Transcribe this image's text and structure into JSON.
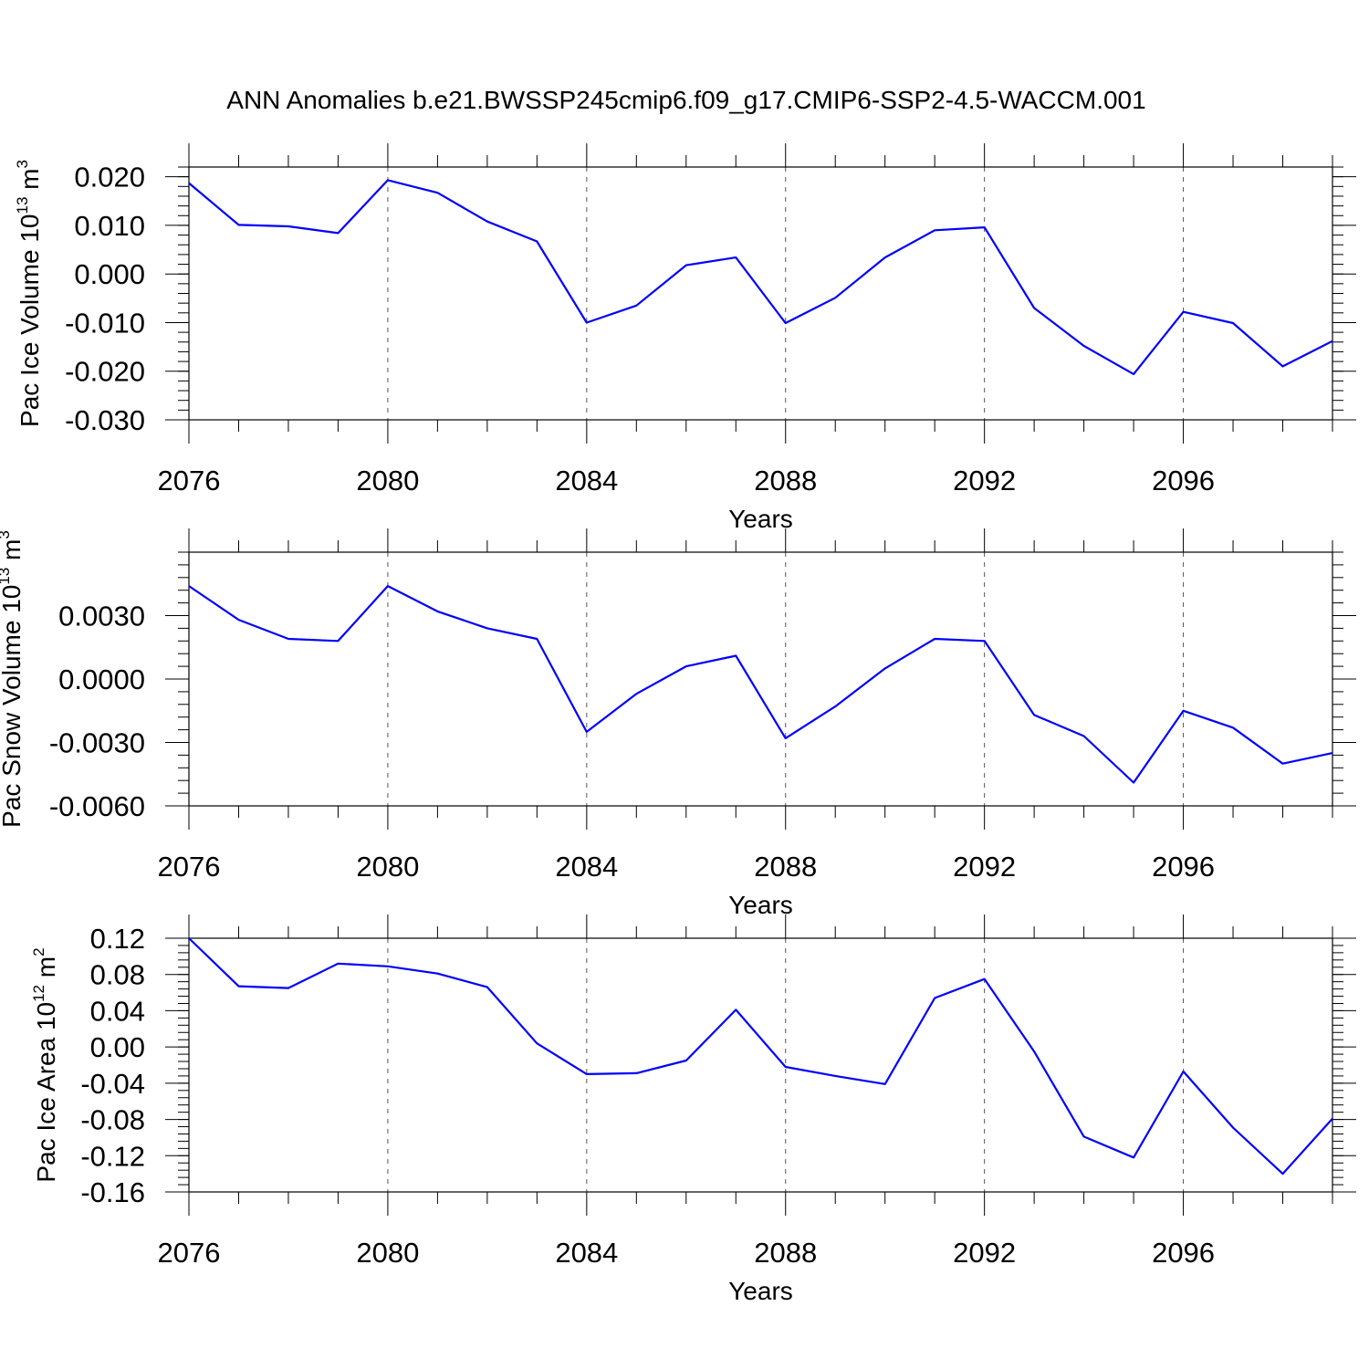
{
  "title": "ANN Anomalies b.e21.BWSSP245cmip6.f09_g17.CMIP6-SSP2-4.5-WACCM.001",
  "colors": {
    "line": "#0000ff",
    "axis": "#000000",
    "grid": "#555555"
  },
  "chart_data": [
    {
      "type": "line",
      "ylabel": {
        "main": "Pac Ice Volume 10",
        "exponent": "13",
        "unit": " m",
        "unit_exponent": "3"
      },
      "xlabel": "Years",
      "xlim": [
        2076,
        2099
      ],
      "ylim": [
        -0.03,
        0.022
      ],
      "yticks": [
        0.02,
        0.01,
        0.0,
        -0.01,
        -0.02,
        -0.03
      ],
      "ytick_labels": [
        "0.020",
        "0.010",
        "0.000",
        "-0.010",
        "-0.020",
        "-0.030"
      ],
      "yminor_step": 0.002,
      "xticks": [
        2076,
        2080,
        2084,
        2088,
        2092,
        2096
      ],
      "xtick_labels": [
        "2076",
        "2080",
        "2084",
        "2088",
        "2092",
        "2096"
      ],
      "grid_x": "dashed at major ticks",
      "series": [
        {
          "x": [
            2076,
            2077,
            2078,
            2079,
            2080,
            2081,
            2082,
            2083,
            2084,
            2085,
            2086,
            2087,
            2088,
            2089,
            2090,
            2091,
            2092,
            2093,
            2094,
            2095,
            2096,
            2097,
            2098,
            2099
          ],
          "values": [
            0.0187,
            0.0101,
            0.0098,
            0.0084,
            0.0193,
            0.0167,
            0.0108,
            0.0067,
            -0.01,
            -0.0065,
            0.0018,
            0.0034,
            -0.0101,
            -0.0049,
            0.0034,
            0.009,
            0.0096,
            -0.007,
            -0.0148,
            -0.0206,
            -0.0078,
            -0.0101,
            -0.019,
            -0.0138
          ]
        }
      ]
    },
    {
      "type": "line",
      "ylabel": {
        "main": "Pac Snow Volume 10",
        "exponent": "13",
        "unit": " m",
        "unit_exponent": "3"
      },
      "xlabel": "Years",
      "xlim": [
        2076,
        2099
      ],
      "ylim": [
        -0.006,
        0.006
      ],
      "yticks": [
        0.003,
        0.0,
        -0.003,
        -0.006
      ],
      "ytick_labels": [
        "0.0030",
        "0.0000",
        "-0.0030",
        "-0.0060"
      ],
      "yminor_step": 0.0006,
      "xticks": [
        2076,
        2080,
        2084,
        2088,
        2092,
        2096
      ],
      "xtick_labels": [
        "2076",
        "2080",
        "2084",
        "2088",
        "2092",
        "2096"
      ],
      "grid_x": "dashed at major ticks",
      "series": [
        {
          "x": [
            2076,
            2077,
            2078,
            2079,
            2080,
            2081,
            2082,
            2083,
            2084,
            2085,
            2086,
            2087,
            2088,
            2089,
            2090,
            2091,
            2092,
            2093,
            2094,
            2095,
            2096,
            2097,
            2098,
            2099
          ],
          "values": [
            0.0044,
            0.0028,
            0.0019,
            0.0018,
            0.0044,
            0.0032,
            0.0024,
            0.0019,
            -0.0025,
            -0.0007,
            0.0006,
            0.0011,
            -0.0028,
            -0.0013,
            0.0005,
            0.0019,
            0.0018,
            -0.0017,
            -0.0027,
            -0.0049,
            -0.0015,
            -0.0023,
            -0.004,
            -0.0035
          ]
        }
      ]
    },
    {
      "type": "line",
      "ylabel": {
        "main": "Pac Ice Area 10",
        "exponent": "12",
        "unit": " m",
        "unit_exponent": "2"
      },
      "xlabel": "Years",
      "xlim": [
        2076,
        2099
      ],
      "ylim": [
        -0.16,
        0.12
      ],
      "yticks": [
        0.12,
        0.08,
        0.04,
        0.0,
        -0.04,
        -0.08,
        -0.12,
        -0.16
      ],
      "ytick_labels": [
        "0.12",
        "0.08",
        "0.04",
        "0.00",
        "-0.04",
        "-0.08",
        "-0.12",
        "-0.16"
      ],
      "yminor_step": 0.008,
      "xticks": [
        2076,
        2080,
        2084,
        2088,
        2092,
        2096
      ],
      "xtick_labels": [
        "2076",
        "2080",
        "2084",
        "2088",
        "2092",
        "2096"
      ],
      "grid_x": "dashed at major ticks",
      "series": [
        {
          "x": [
            2076,
            2077,
            2078,
            2079,
            2080,
            2081,
            2082,
            2083,
            2084,
            2085,
            2086,
            2087,
            2088,
            2089,
            2090,
            2091,
            2092,
            2093,
            2094,
            2095,
            2096,
            2097,
            2098,
            2099
          ],
          "values": [
            0.12,
            0.067,
            0.065,
            0.092,
            0.089,
            0.081,
            0.066,
            0.004,
            -0.03,
            -0.029,
            -0.015,
            0.041,
            -0.022,
            -0.032,
            -0.041,
            0.054,
            0.075,
            -0.005,
            -0.099,
            -0.122,
            -0.027,
            -0.089,
            -0.14,
            -0.079
          ]
        }
      ]
    }
  ]
}
